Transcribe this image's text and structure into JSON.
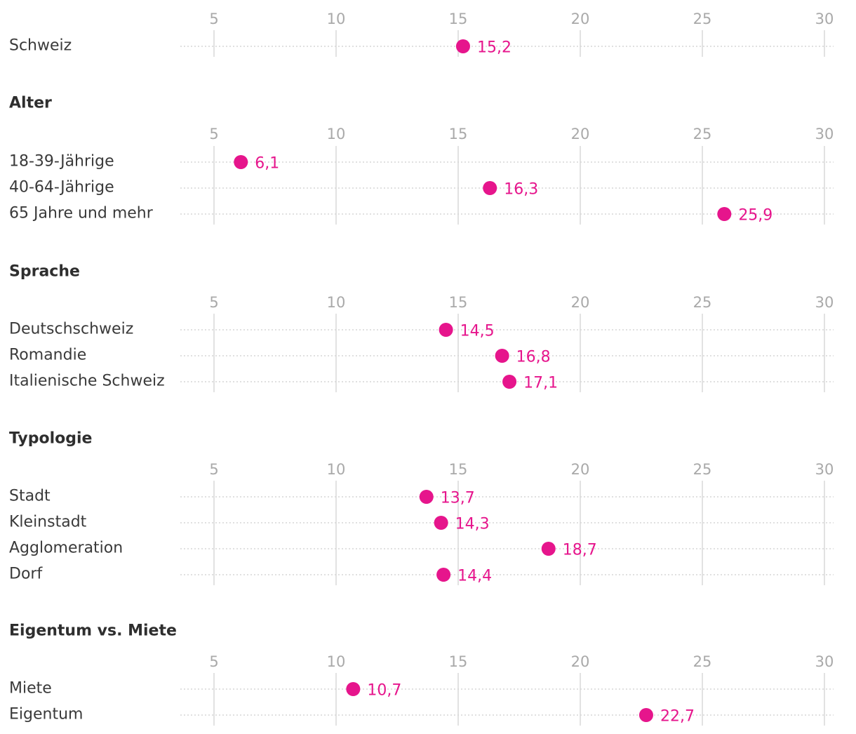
{
  "chart_data": {
    "type": "dot",
    "xlim": [
      5,
      30
    ],
    "ticks": [
      5,
      10,
      15,
      20,
      25,
      30
    ],
    "groups": [
      {
        "heading": "",
        "rows": [
          {
            "label": "Schweiz",
            "value": 15.2,
            "value_label": "15,2"
          }
        ]
      },
      {
        "heading": "Alter",
        "rows": [
          {
            "label": "18-39-Jährige",
            "value": 6.1,
            "value_label": "6,1"
          },
          {
            "label": "40-64-Jährige",
            "value": 16.3,
            "value_label": "16,3"
          },
          {
            "label": "65 Jahre und mehr",
            "value": 25.9,
            "value_label": "25,9"
          }
        ]
      },
      {
        "heading": "Sprache",
        "rows": [
          {
            "label": "Deutschschweiz",
            "value": 14.5,
            "value_label": "14,5"
          },
          {
            "label": "Romandie",
            "value": 16.8,
            "value_label": "16,8"
          },
          {
            "label": "Italienische Schweiz",
            "value": 17.1,
            "value_label": "17,1"
          }
        ]
      },
      {
        "heading": "Typologie",
        "rows": [
          {
            "label": "Stadt",
            "value": 13.7,
            "value_label": "13,7"
          },
          {
            "label": "Kleinstadt",
            "value": 14.3,
            "value_label": "14,3"
          },
          {
            "label": "Agglomeration",
            "value": 18.7,
            "value_label": "18,7"
          },
          {
            "label": "Dorf",
            "value": 14.4,
            "value_label": "14,4"
          }
        ]
      },
      {
        "heading": "Eigentum vs. Miete",
        "rows": [
          {
            "label": "Miete",
            "value": 10.7,
            "value_label": "10,7"
          },
          {
            "label": "Eigentum",
            "value": 22.7,
            "value_label": "22,7"
          }
        ]
      }
    ],
    "colors": {
      "dot": "#e6158c",
      "tick": "#a9a9a9",
      "text": "#333333"
    }
  }
}
